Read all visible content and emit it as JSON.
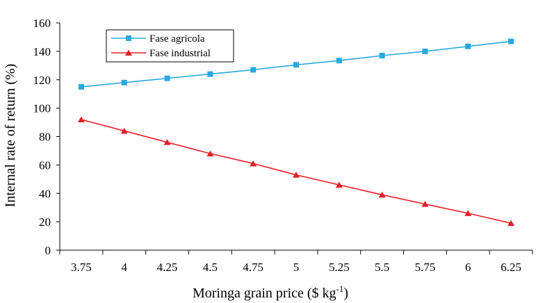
{
  "chart_data": {
    "type": "line",
    "title": "",
    "xlabel": "Moringa grain price ($ kg",
    "xlabel_sup": "-1",
    "xlabel_close": ")",
    "ylabel": "Internal rate of return (%)",
    "categories": [
      "3.75",
      "4",
      "4.25",
      "4.5",
      "4.75",
      "5",
      "5.25",
      "5.5",
      "5.75",
      "6",
      "6.25"
    ],
    "ylim": [
      0,
      160
    ],
    "yticks": [
      "0",
      "20",
      "40",
      "60",
      "80",
      "100",
      "120",
      "140",
      "160"
    ],
    "legend_position": "top-left",
    "series": [
      {
        "name": "Fase agricola",
        "color": "#29a8e0",
        "marker": "square",
        "values": [
          115,
          118,
          121,
          124,
          127,
          130.5,
          133.5,
          137,
          140,
          143.5,
          147
        ]
      },
      {
        "name": "Fase industrial",
        "color": "#e41e26",
        "marker": "triangle",
        "values": [
          92,
          84,
          76,
          68,
          61,
          53,
          46,
          39,
          32.5,
          26,
          19
        ]
      }
    ]
  }
}
